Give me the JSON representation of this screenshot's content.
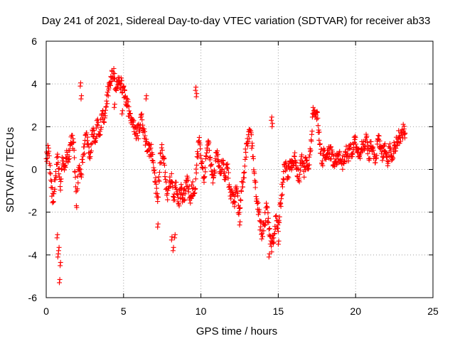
{
  "chart_data": {
    "type": "scatter",
    "title": "Day 241 of 2021, Sidereal Day-to-day VTEC variation (SDTVAR) for receiver ab33",
    "xlabel": "GPS time / hours",
    "ylabel": "SDTVAR / TECUs",
    "xlim": [
      0,
      25
    ],
    "ylim": [
      -6,
      6
    ],
    "xticks": [
      0,
      5,
      10,
      15,
      20,
      25
    ],
    "yticks": [
      -6,
      -4,
      -2,
      0,
      2,
      4,
      6
    ],
    "xtick_labels": [
      "0",
      "5",
      "10",
      "15",
      "20",
      "25"
    ],
    "ytick_labels": [
      "-6",
      "-4",
      "-2",
      "0",
      "2",
      "4",
      "6"
    ],
    "grid": true,
    "marker": "+",
    "series_color": "#ff0000",
    "trace_anchors": [
      [
        0.0,
        0.5
      ],
      [
        0.15,
        1.0
      ],
      [
        0.3,
        -0.5
      ],
      [
        0.45,
        -1.5
      ],
      [
        0.6,
        -0.3
      ],
      [
        0.75,
        0.6
      ],
      [
        0.9,
        -0.8
      ],
      [
        1.05,
        0.4
      ],
      [
        1.2,
        0.2
      ],
      [
        1.35,
        0.8
      ],
      [
        1.5,
        0.5
      ],
      [
        1.65,
        1.6
      ],
      [
        1.8,
        0.9
      ],
      [
        1.95,
        -1.7
      ],
      [
        2.1,
        0.1
      ],
      [
        2.25,
        -0.2
      ],
      [
        2.4,
        0.7
      ],
      [
        2.55,
        1.6
      ],
      [
        2.7,
        1.2
      ],
      [
        2.85,
        0.6
      ],
      [
        3.0,
        1.8
      ],
      [
        3.15,
        1.3
      ],
      [
        3.3,
        2.1
      ],
      [
        3.45,
        1.6
      ],
      [
        3.6,
        2.6
      ],
      [
        3.75,
        2.2
      ],
      [
        3.9,
        3.2
      ],
      [
        4.05,
        3.8
      ],
      [
        4.2,
        4.3
      ],
      [
        4.35,
        4.5
      ],
      [
        4.5,
        3.8
      ],
      [
        4.65,
        4.3
      ],
      [
        4.8,
        4.0
      ],
      [
        4.95,
        3.8
      ],
      [
        5.1,
        3.4
      ],
      [
        5.25,
        3.0
      ],
      [
        5.4,
        2.6
      ],
      [
        5.55,
        2.3
      ],
      [
        5.7,
        2.0
      ],
      [
        5.85,
        1.7
      ],
      [
        6.0,
        1.8
      ],
      [
        6.15,
        2.5
      ],
      [
        6.3,
        1.9
      ],
      [
        6.45,
        1.3
      ],
      [
        6.6,
        0.9
      ],
      [
        6.75,
        1.0
      ],
      [
        6.9,
        0.4
      ],
      [
        7.05,
        -0.6
      ],
      [
        7.2,
        -1.5
      ],
      [
        7.35,
        0.3
      ],
      [
        7.5,
        0.9
      ],
      [
        7.65,
        0.2
      ],
      [
        7.8,
        -1.2
      ],
      [
        7.95,
        -0.8
      ],
      [
        8.1,
        -0.2
      ],
      [
        8.25,
        -1.3
      ],
      [
        8.4,
        -0.6
      ],
      [
        8.55,
        -1.6
      ],
      [
        8.7,
        -0.9
      ],
      [
        8.85,
        -1.4
      ],
      [
        9.0,
        -1.0
      ],
      [
        9.15,
        -0.4
      ],
      [
        9.3,
        -1.3
      ],
      [
        9.45,
        -0.9
      ],
      [
        9.6,
        -1.1
      ],
      [
        9.75,
        0.6
      ],
      [
        9.9,
        1.5
      ],
      [
        10.05,
        0.3
      ],
      [
        10.2,
        -0.6
      ],
      [
        10.35,
        0.6
      ],
      [
        10.5,
        1.2
      ],
      [
        10.65,
        0.2
      ],
      [
        10.8,
        -0.4
      ],
      [
        10.95,
        0.4
      ],
      [
        11.1,
        0.7
      ],
      [
        11.25,
        -0.2
      ],
      [
        11.4,
        0.3
      ],
      [
        11.55,
        -0.3
      ],
      [
        11.7,
        0.1
      ],
      [
        11.85,
        -0.8
      ],
      [
        12.0,
        -1.2
      ],
      [
        12.15,
        -1.5
      ],
      [
        12.3,
        -0.9
      ],
      [
        12.45,
        -2.1
      ],
      [
        12.6,
        -1.0
      ],
      [
        12.75,
        -0.4
      ],
      [
        12.9,
        0.8
      ],
      [
        13.05,
        1.3
      ],
      [
        13.2,
        1.8
      ],
      [
        13.35,
        0.6
      ],
      [
        13.5,
        -0.6
      ],
      [
        13.65,
        -1.6
      ],
      [
        13.8,
        -2.4
      ],
      [
        13.95,
        -3.0
      ],
      [
        14.1,
        -2.6
      ],
      [
        14.25,
        -1.8
      ],
      [
        14.4,
        -2.8
      ],
      [
        14.55,
        -3.6
      ],
      [
        14.7,
        -3.2
      ],
      [
        14.85,
        -2.2
      ],
      [
        15.0,
        -2.9
      ],
      [
        15.15,
        -1.6
      ],
      [
        15.3,
        -0.6
      ],
      [
        15.45,
        0.3
      ],
      [
        15.6,
        -0.4
      ],
      [
        15.75,
        0.4
      ],
      [
        15.9,
        0.1
      ],
      [
        16.05,
        0.6
      ],
      [
        16.2,
        0.0
      ],
      [
        16.35,
        -0.5
      ],
      [
        16.5,
        0.6
      ],
      [
        16.65,
        -0.1
      ],
      [
        16.8,
        0.4
      ],
      [
        16.95,
        0.2
      ],
      [
        17.1,
        0.9
      ],
      [
        17.25,
        2.9
      ],
      [
        17.4,
        2.6
      ],
      [
        17.55,
        2.4
      ],
      [
        17.7,
        1.2
      ],
      [
        17.85,
        0.4
      ],
      [
        18.0,
        0.9
      ],
      [
        18.15,
        0.6
      ],
      [
        18.3,
        0.9
      ],
      [
        18.45,
        0.7
      ],
      [
        18.6,
        0.2
      ],
      [
        18.75,
        0.5
      ],
      [
        18.9,
        0.7
      ],
      [
        19.05,
        0.4
      ],
      [
        19.2,
        0.3
      ],
      [
        19.35,
        0.8
      ],
      [
        19.5,
        0.6
      ],
      [
        19.65,
        1.0
      ],
      [
        19.8,
        0.7
      ],
      [
        19.95,
        1.4
      ],
      [
        20.1,
        1.0
      ],
      [
        20.25,
        0.6
      ],
      [
        20.4,
        1.3
      ],
      [
        20.55,
        0.9
      ],
      [
        20.7,
        1.5
      ],
      [
        20.85,
        0.5
      ],
      [
        21.0,
        1.3
      ],
      [
        21.15,
        0.9
      ],
      [
        21.3,
        0.5
      ],
      [
        21.45,
        1.4
      ],
      [
        21.6,
        1.0
      ],
      [
        21.75,
        0.6
      ],
      [
        21.9,
        1.2
      ],
      [
        22.05,
        0.4
      ],
      [
        22.2,
        1.0
      ],
      [
        22.35,
        0.6
      ],
      [
        22.5,
        1.1
      ],
      [
        22.65,
        1.3
      ],
      [
        22.8,
        1.5
      ],
      [
        22.95,
        1.7
      ],
      [
        23.1,
        1.8
      ],
      [
        23.2,
        1.7
      ]
    ],
    "outlier_clusters": [
      {
        "x": 0.7,
        "y": -3.2
      },
      {
        "x": 0.75,
        "y": -4.1
      },
      {
        "x": 0.8,
        "y": -3.8
      },
      {
        "x": 0.85,
        "y": -5.3
      },
      {
        "x": 0.9,
        "y": -4.5
      },
      {
        "x": 2.2,
        "y": 3.9
      },
      {
        "x": 2.25,
        "y": 3.3
      },
      {
        "x": 4.4,
        "y": 2.9
      },
      {
        "x": 4.9,
        "y": 2.6
      },
      {
        "x": 6.45,
        "y": 3.3
      },
      {
        "x": 7.2,
        "y": -2.7
      },
      {
        "x": 8.1,
        "y": -3.3
      },
      {
        "x": 8.2,
        "y": -3.8
      },
      {
        "x": 8.3,
        "y": -3.2
      },
      {
        "x": 9.65,
        "y": 3.7
      },
      {
        "x": 9.7,
        "y": 3.4
      },
      {
        "x": 12.5,
        "y": -2.6
      },
      {
        "x": 14.4,
        "y": -4.1
      },
      {
        "x": 14.55,
        "y": 2.3
      },
      {
        "x": 14.6,
        "y": 2.0
      },
      {
        "x": 15.0,
        "y": -3.5
      }
    ]
  }
}
